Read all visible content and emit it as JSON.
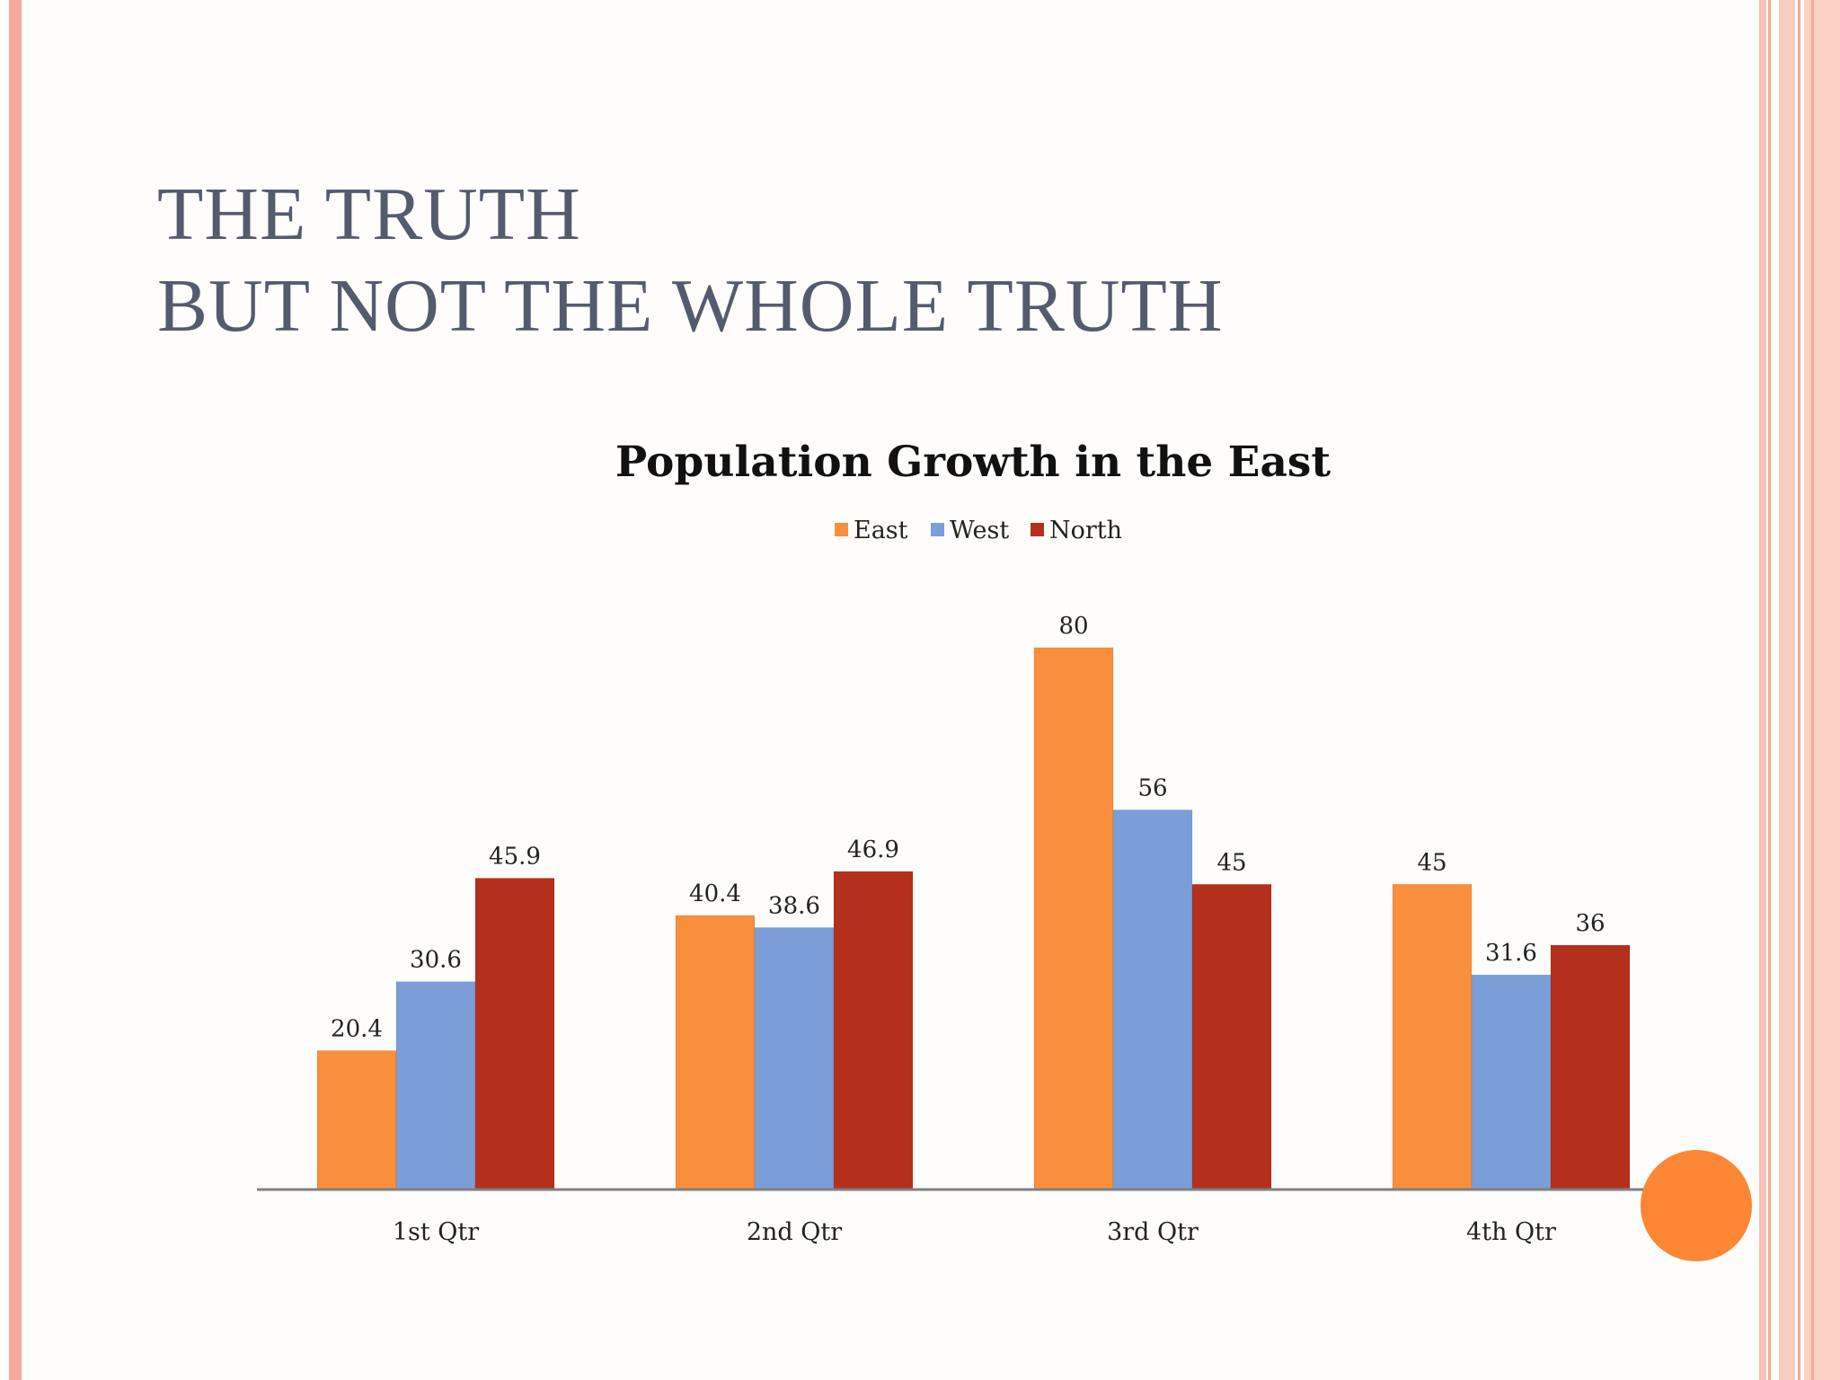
{
  "slide": {
    "title_line1": "THE TRUTH",
    "title_line2": "BUT NOT THE WHOLE TRUTH"
  },
  "chart_data": {
    "type": "bar",
    "title": "Population Growth in the East",
    "categories": [
      "1st Qtr",
      "2nd Qtr",
      "3rd Qtr",
      "4th Qtr"
    ],
    "series": [
      {
        "name": "East",
        "color": "#f98e3c",
        "values": [
          20.4,
          40.4,
          80,
          45
        ]
      },
      {
        "name": "West",
        "color": "#7b9ed9",
        "values": [
          30.6,
          38.6,
          56,
          31.6
        ]
      },
      {
        "name": "North",
        "color": "#b5301c",
        "values": [
          45.9,
          46.9,
          45,
          36
        ]
      }
    ],
    "ylim": [
      0,
      80
    ],
    "xlabel": "",
    "ylabel": "",
    "legend": "top-center",
    "grid": false
  },
  "theme": {
    "accent": "#fd8735",
    "border": "#f6a99a",
    "title_color": "#555b6e"
  }
}
